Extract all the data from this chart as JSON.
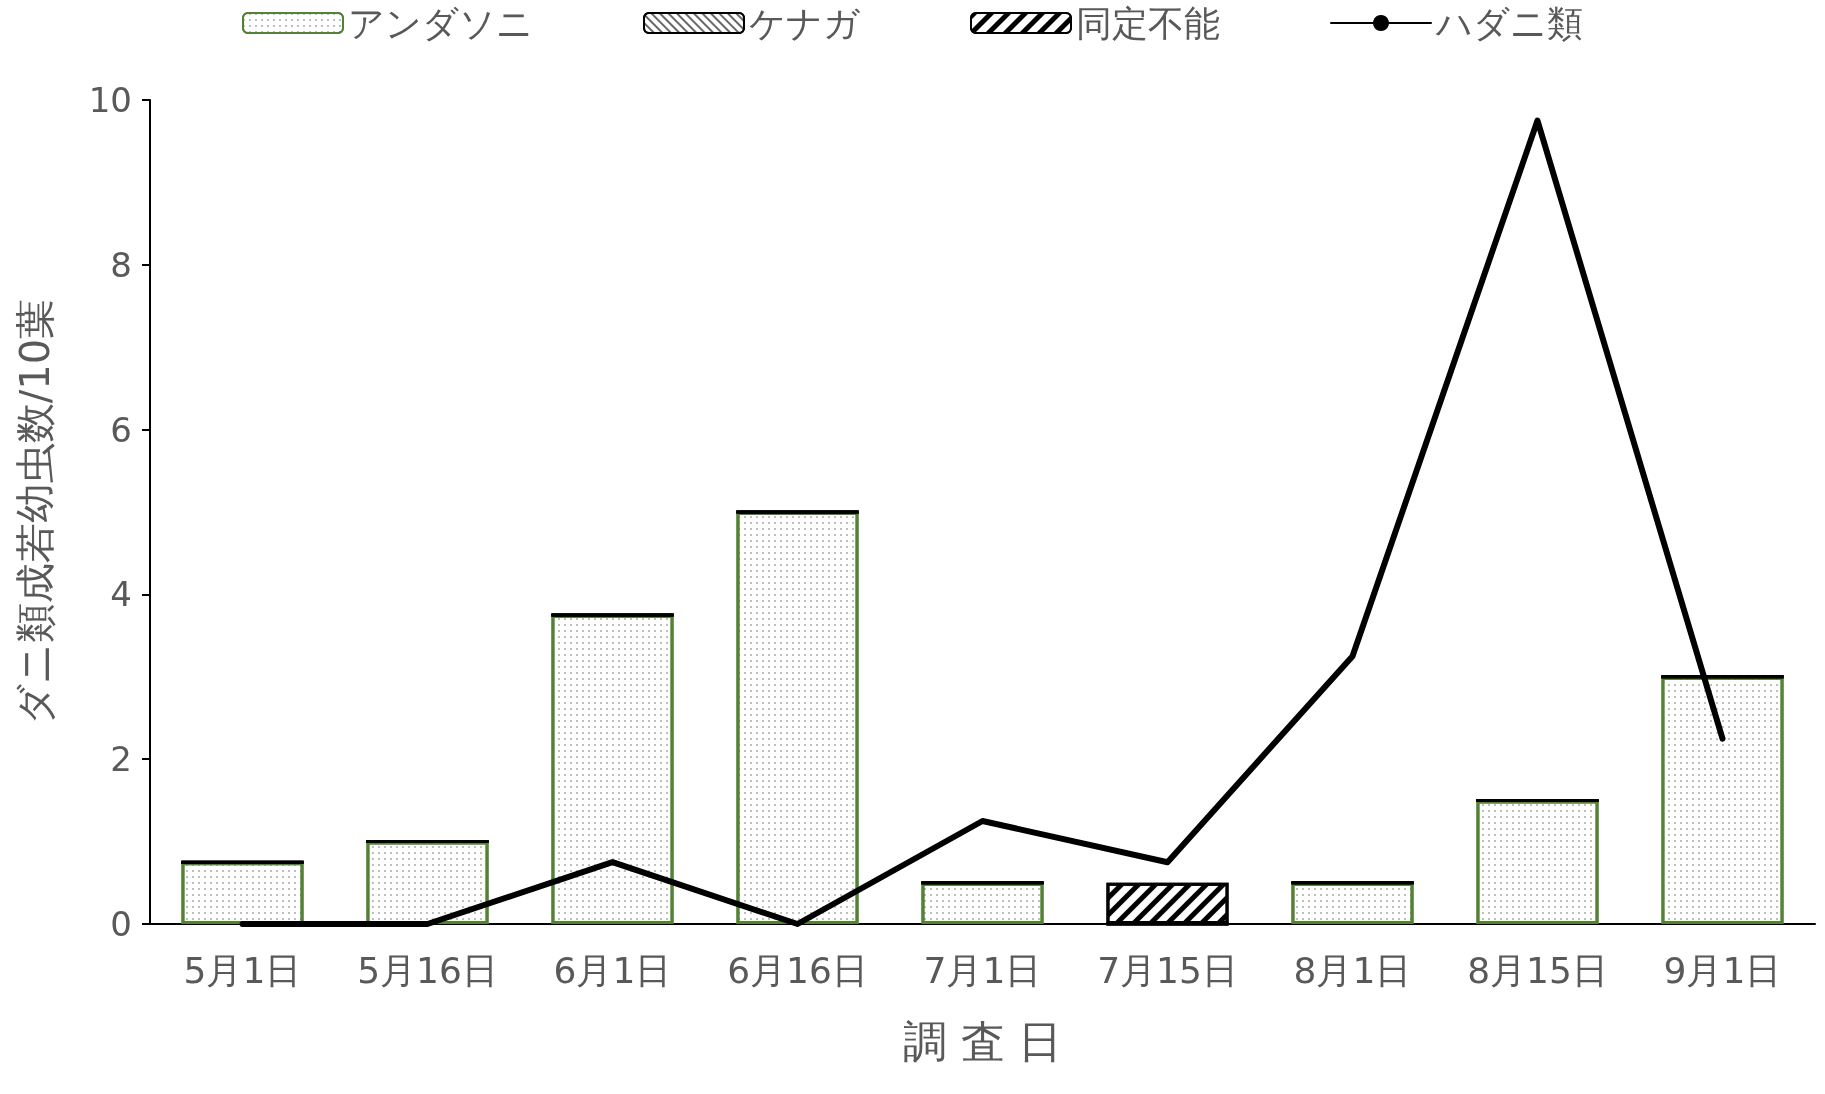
{
  "chart_data": {
    "type": "bar",
    "stacked": true,
    "xlabel": "調 査 日",
    "ylabel": "ダニ類成若幼虫数/10葉",
    "categories": [
      "5月1日",
      "5月16日",
      "6月1日",
      "6月16日",
      "7月1日",
      "7月15日",
      "8月1日",
      "8月15日",
      "9月1日"
    ],
    "series": [
      {
        "name": "アンダソニ",
        "color": "#548235",
        "values": [
          0.75,
          1,
          3.75,
          5,
          0.5,
          0,
          0.5,
          1.5,
          3
        ]
      },
      {
        "name": "ケナガ",
        "color": "#000000",
        "values": [
          0,
          0,
          0,
          0,
          0,
          0,
          0,
          0,
          0
        ]
      },
      {
        "name": "同定不能",
        "color": "#000000",
        "values": [
          0,
          0,
          0,
          0,
          0,
          0.5,
          0,
          0,
          0
        ]
      },
      {
        "name": "ハダニ類",
        "type": "line",
        "color": "#000000",
        "marker": "none",
        "values": [
          0,
          0,
          0.75,
          0,
          1.25,
          0.75,
          3.25,
          9.75,
          2.25
        ]
      }
    ],
    "ylim": [
      0,
      10
    ],
    "yticks": [
      0,
      2,
      4,
      6,
      8,
      10
    ],
    "grid": false,
    "legend": "top"
  }
}
